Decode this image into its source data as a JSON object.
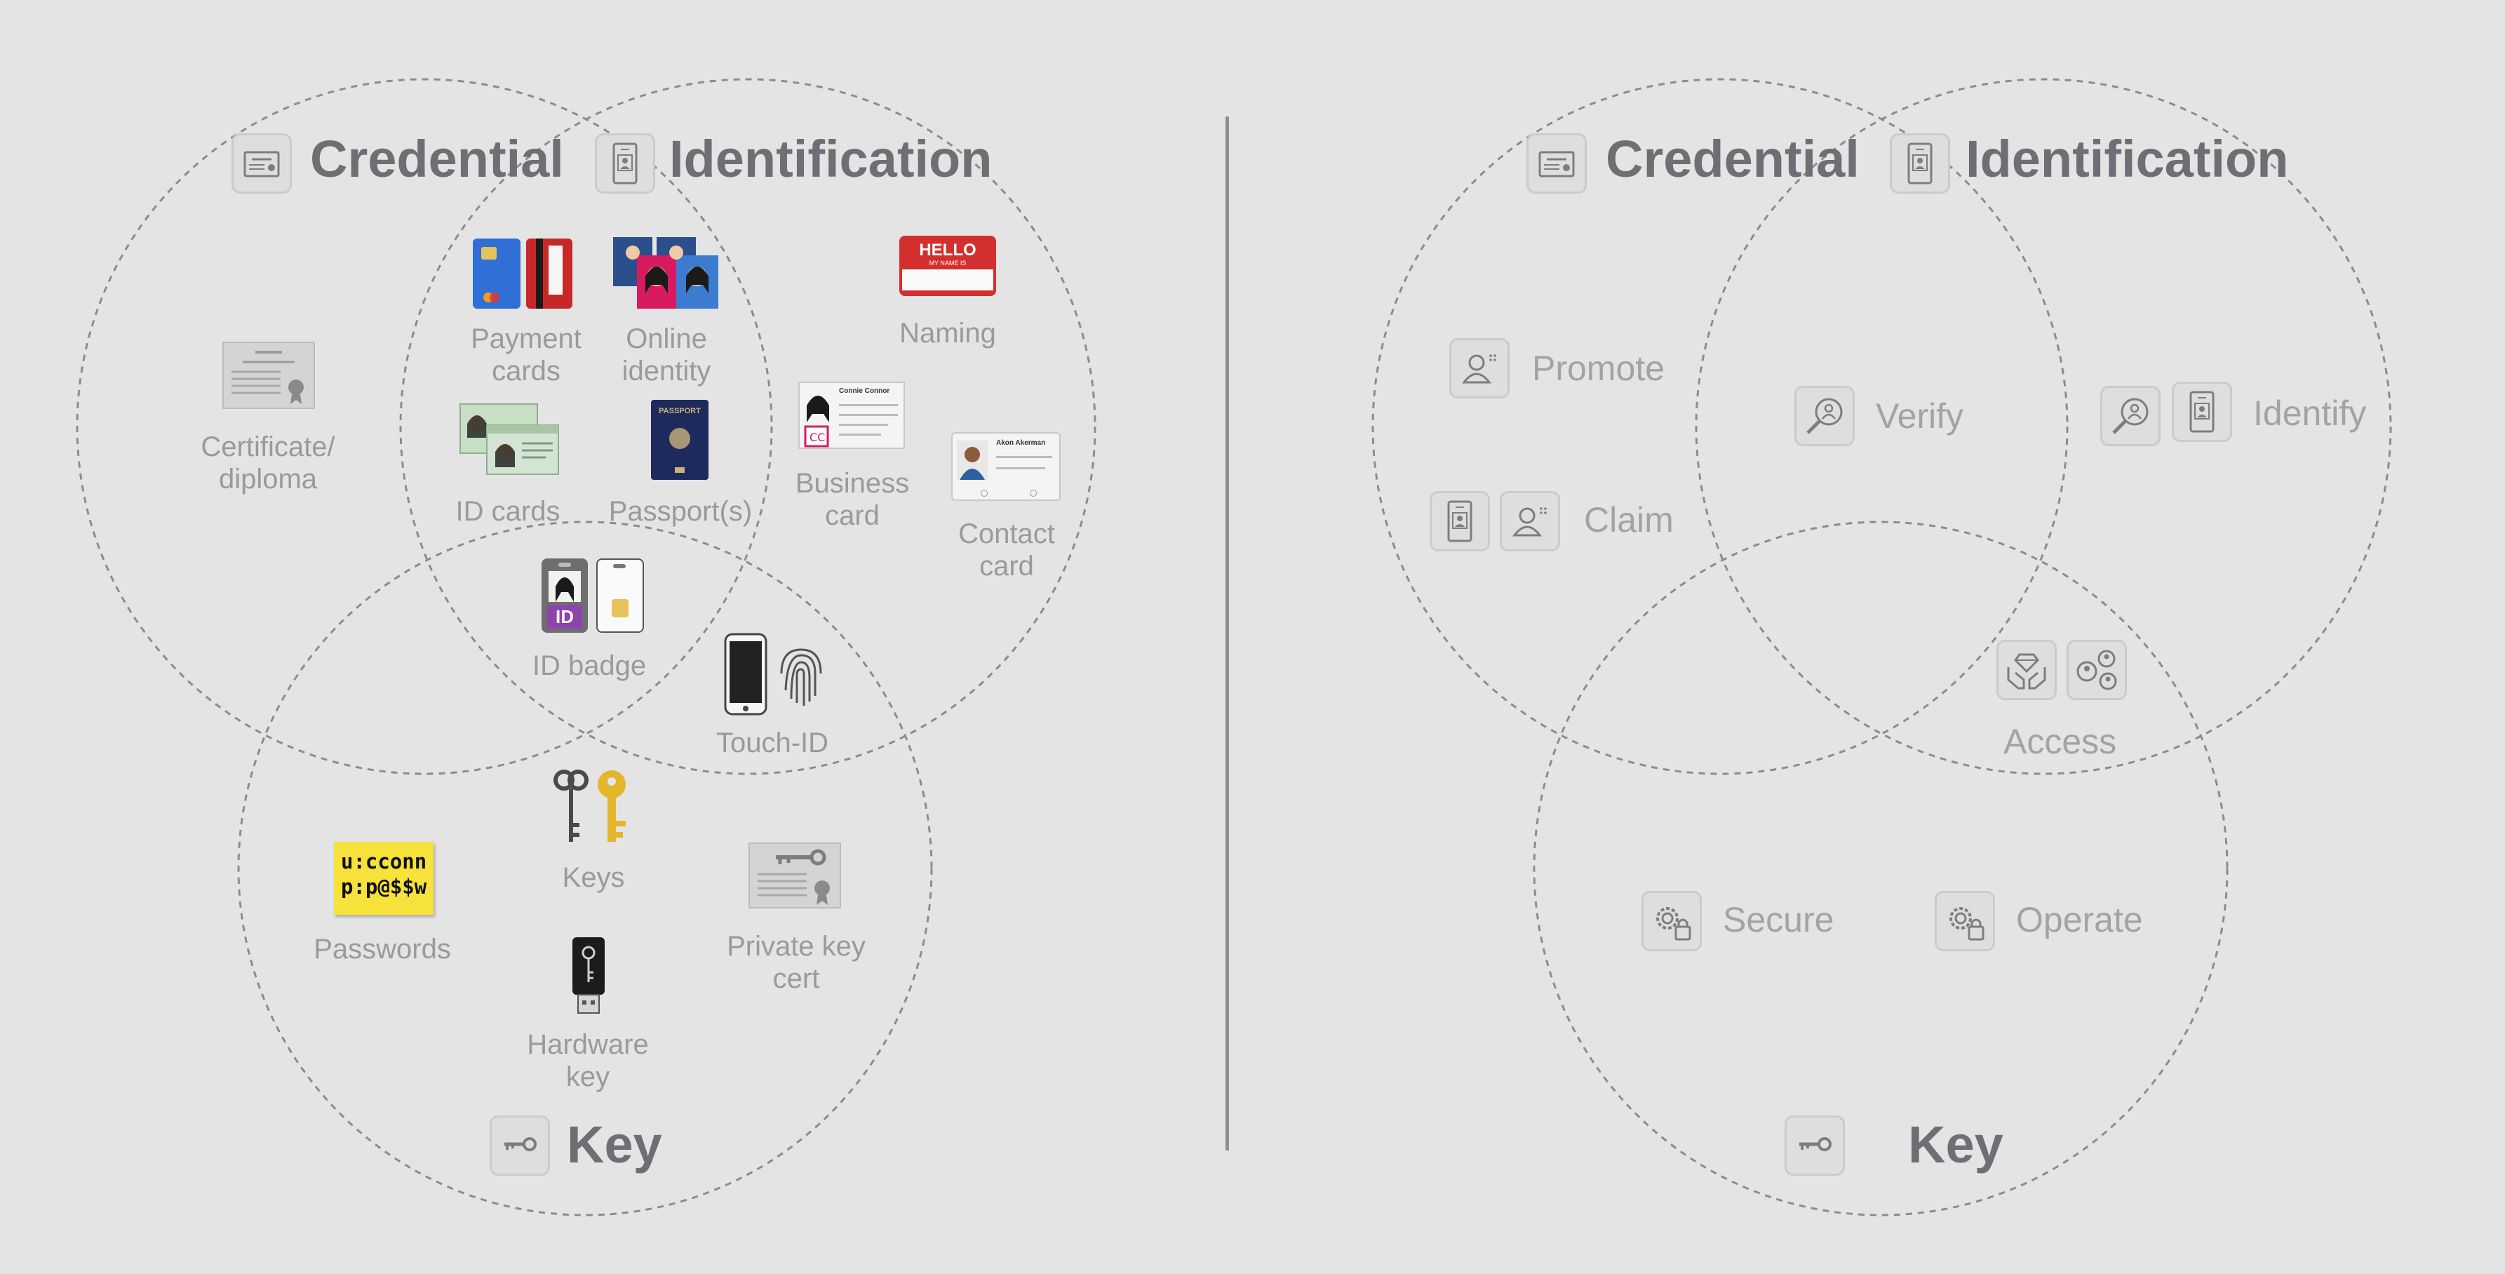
{
  "left_diagram": {
    "circles": {
      "credential": {
        "title": "Credential",
        "icon": "credential-certificate-icon"
      },
      "identification": {
        "title": "Identification",
        "icon": "id-badge-icon"
      },
      "key": {
        "title": "Key",
        "icon": "key-icon"
      }
    },
    "items": {
      "certificate": "Certificate/\ndiploma",
      "payment_cards": "Payment\ncards",
      "online_identity": "Online\nidentity",
      "naming": "Naming",
      "id_cards": "ID cards",
      "passports": "Passport(s)",
      "business_card": "Business\ncard",
      "contact_card": "Contact\ncard",
      "id_badge": "ID badge",
      "touch_id": "Touch-ID",
      "keys": "Keys",
      "passwords": "Passwords",
      "private_key_cert": "Private key\ncert",
      "hardware_key": "Hardware\nkey"
    },
    "sticky_note": {
      "line1": "u:cconn",
      "line2": "p:p@$$w"
    },
    "hello_tag": {
      "line1": "HELLO",
      "line2": "MY NAME IS"
    },
    "passport_cover": "PASSPORT",
    "id_badge_text": "ID",
    "business_card_name": "Connie Connor",
    "contact_card_name": "Akon Akerman"
  },
  "right_diagram": {
    "circles": {
      "credential": {
        "title": "Credential",
        "icon": "credential-certificate-icon"
      },
      "identification": {
        "title": "Identification",
        "icon": "id-badge-icon"
      },
      "key": {
        "title": "Key",
        "icon": "key-icon"
      }
    },
    "actions": {
      "promote": "Promote",
      "claim": "Claim",
      "verify": "Verify",
      "identify": "Identify",
      "access": "Access",
      "secure": "Secure",
      "operate": "Operate"
    }
  },
  "colors": {
    "background": "#e4e4e4",
    "title_text": "#6d6f74",
    "label_text": "#9a9a9a",
    "circle_stroke": "#8c8c8c",
    "icon_box_fill": "#dedede",
    "divider": "#8e8e8e"
  }
}
